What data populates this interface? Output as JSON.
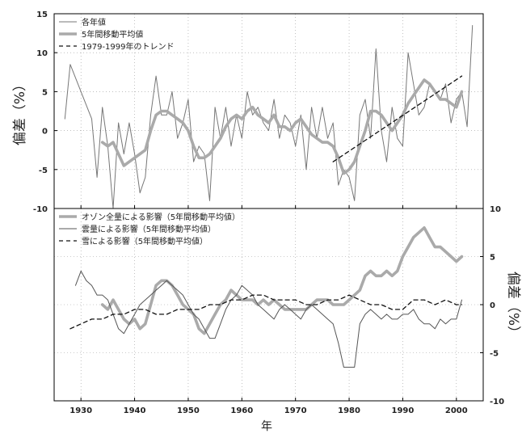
{
  "chart_data": [
    {
      "type": "line",
      "title": "",
      "xlabel": "",
      "ylabel": "偏差（%）",
      "xlim": [
        1925,
        2005
      ],
      "ylim": [
        -10,
        15
      ],
      "x_ticks": [
        1930,
        1940,
        1950,
        1960,
        1970,
        1980,
        1990,
        2000
      ],
      "y_ticks": [
        15,
        10,
        5,
        0,
        -5,
        -10
      ],
      "grid": true,
      "legend_position": "top-left",
      "series": [
        {
          "name": "各年値",
          "style": "thin",
          "color": "#777777",
          "x": [
            1927,
            1928,
            1932,
            1933,
            1934,
            1935,
            1936,
            1937,
            1938,
            1939,
            1940,
            1941,
            1942,
            1943,
            1944,
            1945,
            1946,
            1947,
            1948,
            1949,
            1950,
            1951,
            1952,
            1953,
            1954,
            1955,
            1956,
            1957,
            1958,
            1959,
            1960,
            1961,
            1962,
            1963,
            1964,
            1965,
            1966,
            1967,
            1968,
            1969,
            1970,
            1971,
            1972,
            1973,
            1974,
            1975,
            1976,
            1977,
            1978,
            1979,
            1980,
            1981,
            1982,
            1983,
            1984,
            1985,
            1986,
            1987,
            1988,
            1989,
            1990,
            1991,
            1992,
            1993,
            1994,
            1995,
            1996,
            1997,
            1998,
            1999,
            2000,
            2001,
            2002,
            2003
          ],
          "y": [
            1.5,
            8.5,
            1.5,
            -6,
            3,
            -2,
            -10,
            1,
            -3,
            1,
            -3,
            -8,
            -6,
            2,
            7,
            2,
            2,
            5,
            -1,
            1,
            4,
            -4,
            -2,
            -3,
            -9,
            3,
            -1,
            3,
            -2,
            2,
            -1,
            5,
            2,
            3,
            1,
            0,
            4,
            -1,
            2,
            1,
            -2,
            2,
            -5,
            3,
            -1,
            3,
            -1,
            1,
            -7,
            -5,
            -6,
            -9,
            2,
            4,
            -1,
            10.5,
            0,
            -4,
            3,
            -1,
            -2,
            10,
            6,
            2,
            3,
            6,
            5,
            4,
            6,
            1,
            4,
            5,
            0.5,
            13.5
          ]
        },
        {
          "name": "5年間移動平均値",
          "style": "thick",
          "color": "#aaaaaa",
          "x": [
            1934,
            1935,
            1936,
            1937,
            1938,
            1939,
            1940,
            1941,
            1942,
            1943,
            1944,
            1945,
            1946,
            1947,
            1948,
            1949,
            1950,
            1951,
            1952,
            1953,
            1954,
            1955,
            1956,
            1957,
            1958,
            1959,
            1960,
            1961,
            1962,
            1963,
            1964,
            1965,
            1966,
            1967,
            1968,
            1969,
            1970,
            1971,
            1972,
            1973,
            1974,
            1975,
            1976,
            1977,
            1978,
            1979,
            1980,
            1981,
            1982,
            1983,
            1984,
            1985,
            1986,
            1987,
            1988,
            1989,
            1990,
            1991,
            1992,
            1993,
            1994,
            1995,
            1996,
            1997,
            1998,
            1999,
            2000,
            2001
          ],
          "y": [
            -1.5,
            -2,
            -1.5,
            -3,
            -4.5,
            -4,
            -3.5,
            -3,
            -2.5,
            0,
            2,
            2.5,
            2.5,
            2,
            1.5,
            1,
            0,
            -2,
            -3.5,
            -3.5,
            -3,
            -2,
            -1,
            0.5,
            1.5,
            2,
            1.5,
            2.5,
            3,
            2,
            1.5,
            1,
            2,
            0.5,
            0.5,
            0,
            1,
            1.5,
            0.5,
            -0.5,
            -1,
            -1.5,
            -1.5,
            -2,
            -3.5,
            -5.5,
            -5,
            -4,
            -2,
            0,
            2.5,
            2.5,
            2,
            1,
            0,
            1,
            2,
            3.5,
            4.5,
            5.5,
            6.5,
            6,
            5,
            4,
            4,
            3.5,
            3,
            5
          ]
        },
        {
          "name": "1979-1999年のトレンド",
          "style": "dashed",
          "color": "#111111",
          "x": [
            1977,
            2001
          ],
          "y": [
            -4,
            7
          ]
        }
      ]
    },
    {
      "type": "line",
      "title": "",
      "xlabel": "年",
      "ylabel": "偏差（%）",
      "xlim": [
        1925,
        2005
      ],
      "ylim": [
        -10,
        10
      ],
      "x_ticks": [
        1930,
        1940,
        1950,
        1960,
        1970,
        1980,
        1990,
        2000
      ],
      "y_ticks": [
        10,
        5,
        0,
        -5,
        -10
      ],
      "grid": true,
      "legend_position": "top-left",
      "series": [
        {
          "name": "オゾン全量による影響（5年間移動平均値）",
          "style": "thick",
          "color": "#aaaaaa",
          "x": [
            1934,
            1935,
            1936,
            1937,
            1938,
            1939,
            1940,
            1941,
            1942,
            1943,
            1944,
            1945,
            1946,
            1947,
            1948,
            1949,
            1950,
            1951,
            1952,
            1953,
            1954,
            1955,
            1956,
            1957,
            1958,
            1959,
            1960,
            1961,
            1962,
            1963,
            1964,
            1965,
            1966,
            1967,
            1968,
            1969,
            1970,
            1971,
            1972,
            1973,
            1974,
            1975,
            1976,
            1977,
            1978,
            1979,
            1980,
            1981,
            1982,
            1983,
            1984,
            1985,
            1986,
            1987,
            1988,
            1989,
            1990,
            1991,
            1992,
            1993,
            1994,
            1995,
            1996,
            1997,
            1998,
            1999,
            2000,
            2001
          ],
          "y": [
            0,
            -0.5,
            0.5,
            -0.5,
            -1.5,
            -2,
            -1.5,
            -2.5,
            -2,
            0,
            2,
            2.5,
            2.5,
            2,
            1,
            0,
            -0.5,
            -1,
            -2.5,
            -3,
            -2,
            -1,
            0,
            0.5,
            1.5,
            1,
            0.5,
            0.5,
            0.5,
            0,
            0.5,
            0,
            0.5,
            0,
            -0.5,
            -0.5,
            -0.5,
            -0.5,
            -0.5,
            0,
            0.5,
            0.5,
            0.5,
            0,
            0,
            0,
            0.5,
            1,
            1.5,
            3,
            3.5,
            3,
            3,
            3.5,
            3,
            3.5,
            5,
            6,
            7,
            7.5,
            8,
            7,
            6,
            6,
            5.5,
            5,
            4.5,
            5
          ]
        },
        {
          "name": "雲量による影響（5年間移動平均値）",
          "style": "thin",
          "color": "#555555",
          "x": [
            1929,
            1930,
            1931,
            1932,
            1933,
            1934,
            1935,
            1936,
            1937,
            1938,
            1939,
            1940,
            1941,
            1942,
            1943,
            1944,
            1945,
            1946,
            1947,
            1948,
            1949,
            1950,
            1951,
            1952,
            1953,
            1954,
            1955,
            1956,
            1957,
            1958,
            1959,
            1960,
            1961,
            1962,
            1963,
            1964,
            1965,
            1966,
            1967,
            1968,
            1969,
            1970,
            1971,
            1972,
            1973,
            1974,
            1975,
            1976,
            1977,
            1978,
            1979,
            1980,
            1981,
            1982,
            1983,
            1984,
            1985,
            1986,
            1987,
            1988,
            1989,
            1990,
            1991,
            1992,
            1993,
            1994,
            1995,
            1996,
            1997,
            1998,
            1999,
            2000,
            2001
          ],
          "y": [
            2,
            3.5,
            2.5,
            2,
            1,
            1,
            0.5,
            -1,
            -2.5,
            -3,
            -2,
            -1,
            0,
            0.5,
            1,
            1.5,
            2,
            2.5,
            2,
            1.5,
            1,
            0,
            -1,
            -1.5,
            -2.5,
            -3.5,
            -3.5,
            -2,
            -0.5,
            0.5,
            1,
            2,
            1.5,
            1,
            0,
            -0.5,
            -1,
            -1.5,
            -0.5,
            0,
            -0.5,
            -1,
            -1.5,
            -0.5,
            0,
            -0.5,
            -1,
            -1.5,
            -2,
            -4,
            -6.5,
            -6.5,
            -6.5,
            -2,
            -1,
            -0.5,
            -1,
            -1.5,
            -1,
            -1.5,
            -1.5,
            -1,
            -1,
            -0.5,
            -1.5,
            -2,
            -2,
            -2.5,
            -1.5,
            -2,
            -1.5,
            -1.5,
            0.5
          ]
        },
        {
          "name": "雪による影響（5年間移動平均値）",
          "style": "dashed",
          "color": "#111111",
          "x": [
            1928,
            1930,
            1932,
            1934,
            1936,
            1938,
            1940,
            1942,
            1944,
            1946,
            1948,
            1950,
            1952,
            1954,
            1956,
            1958,
            1960,
            1962,
            1964,
            1966,
            1968,
            1970,
            1972,
            1974,
            1976,
            1978,
            1980,
            1982,
            1984,
            1986,
            1988,
            1990,
            1992,
            1994,
            1996,
            1998,
            2000,
            2001
          ],
          "y": [
            -2.5,
            -2,
            -1.5,
            -1.5,
            -1,
            -1,
            -0.5,
            -0.5,
            -1,
            -1,
            -0.5,
            -0.5,
            -0.5,
            0,
            0,
            0.5,
            0.5,
            1,
            1,
            0.5,
            0.5,
            0.5,
            0,
            0,
            0.5,
            0.5,
            1,
            0.5,
            0,
            0,
            -0.5,
            -0.5,
            0.5,
            0.5,
            0,
            0.5,
            0,
            0
          ]
        }
      ]
    }
  ]
}
